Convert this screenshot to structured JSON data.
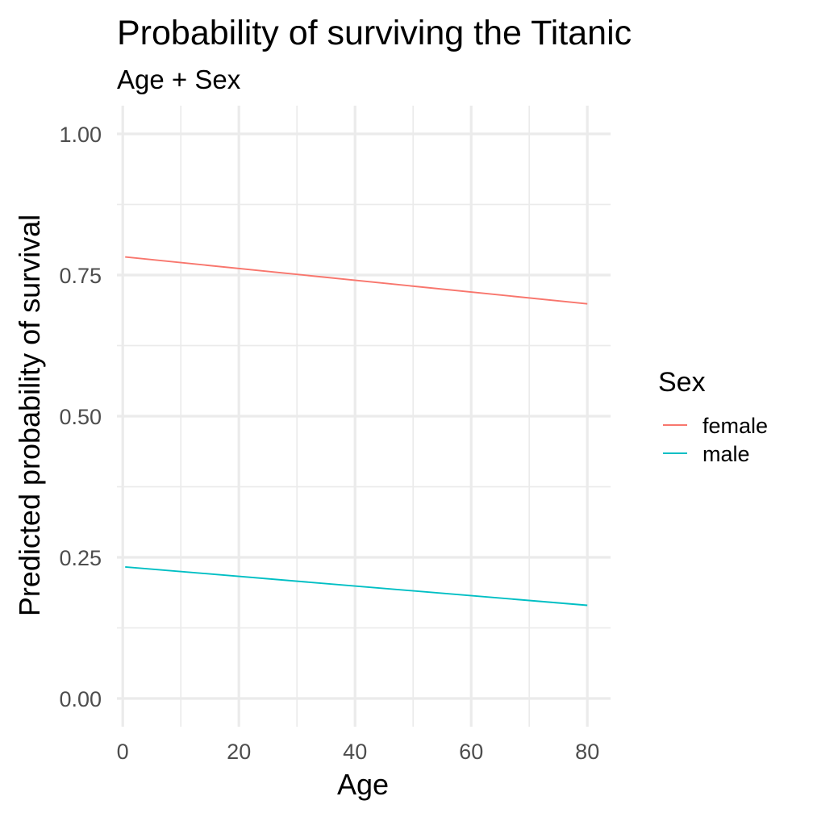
{
  "chart_data": {
    "type": "line",
    "title": "Probability of surviving the Titanic",
    "subtitle": "Age + Sex",
    "xlabel": "Age",
    "ylabel": "Predicted probability of survival",
    "xlim": [
      -1,
      84
    ],
    "ylim": [
      -0.05,
      1.05
    ],
    "x_ticks": [
      0,
      20,
      40,
      60,
      80
    ],
    "x_tick_labels": [
      "0",
      "20",
      "40",
      "60",
      "80"
    ],
    "x_minor_ticks": [
      10,
      30,
      50,
      70
    ],
    "y_ticks": [
      0,
      0.25,
      0.5,
      0.75,
      1
    ],
    "y_tick_labels": [
      "0.00",
      "0.25",
      "0.50",
      "0.75",
      "1.00"
    ],
    "y_minor_ticks": [
      0.125,
      0.375,
      0.625,
      0.875
    ],
    "grid": true,
    "legend": {
      "title": "Sex",
      "position": "right"
    },
    "series": [
      {
        "name": "female",
        "color": "#f8766d",
        "x": [
          0.42,
          80
        ],
        "y": [
          0.782,
          0.699
        ]
      },
      {
        "name": "male",
        "color": "#00bfc4",
        "x": [
          0.42,
          80
        ],
        "y": [
          0.233,
          0.165
        ]
      }
    ]
  }
}
